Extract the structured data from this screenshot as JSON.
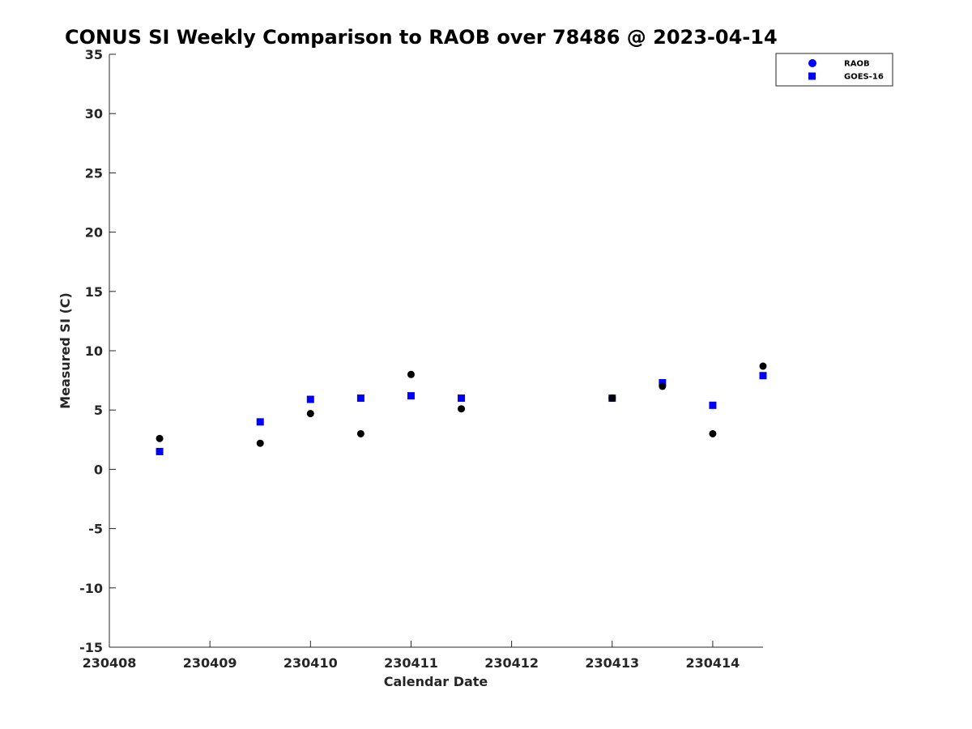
{
  "chart_data": {
    "type": "scatter",
    "title": "CONUS SI Weekly Comparison to RAOB over 78486 @ 2023-04-14",
    "xlabel": "Calendar Date",
    "ylabel": "Measured SI (C)",
    "xlim": [
      230408,
      230414.5
    ],
    "ylim": [
      -15,
      35
    ],
    "xticks": [
      230408,
      230409,
      230410,
      230411,
      230412,
      230413,
      230414
    ],
    "xtick_labels": [
      "230408",
      "230409",
      "230410",
      "230411",
      "230412",
      "230413",
      "230414"
    ],
    "yticks": [
      -15,
      -10,
      -5,
      0,
      5,
      10,
      15,
      20,
      25,
      30,
      35
    ],
    "ytick_labels": [
      "-15",
      "-10",
      "-5",
      "0",
      "5",
      "10",
      "15",
      "20",
      "25",
      "30",
      "35"
    ],
    "legend_position": "top-right",
    "grid": false,
    "series": [
      {
        "name": "RAOB",
        "marker": "circle",
        "color": "#000000",
        "legend_color": "#0000ff",
        "x": [
          230408.5,
          230409.5,
          230410,
          230410.5,
          230411,
          230411.5,
          230413,
          230413.5,
          230414,
          230414.5
        ],
        "y": [
          2.6,
          2.2,
          4.7,
          3.0,
          8.0,
          5.1,
          6.0,
          7.0,
          3.0,
          8.7
        ]
      },
      {
        "name": "GOES-16",
        "marker": "square",
        "color": "#0000ff",
        "legend_color": "#0000ff",
        "x": [
          230408.5,
          230409.5,
          230410,
          230410.5,
          230411,
          230411.5,
          230413,
          230413.5,
          230414,
          230414.5
        ],
        "y": [
          1.5,
          4.0,
          5.9,
          6.0,
          6.2,
          6.0,
          6.0,
          7.3,
          5.4,
          7.9
        ]
      }
    ]
  }
}
